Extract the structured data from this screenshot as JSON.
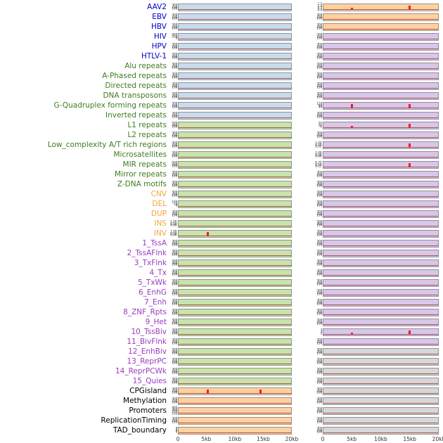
{
  "figure": {
    "description": "Genomic feature density tracks around two integration loci, 0-20kb windows",
    "x_axis_ticks": [
      "0",
      "5kb",
      "10kb",
      "15kb",
      "20kb"
    ]
  },
  "groups": {
    "virus": "#0000cd",
    "repeat": "#3f7d1e",
    "sv": "#f3a63a",
    "chromhmm": "#9a3bbf",
    "other": "#000000"
  },
  "panel_fills": {
    "blue": "#c9dcec",
    "green": "#c9e3ae",
    "orange": "#fdd1a2",
    "purple": "#d8c7e9",
    "gray": "#d7d7d7"
  },
  "plot": {
    "spike_color": "#ed1c24",
    "baseline_color": "#a04434",
    "default_yticks": [
      "300",
      "200",
      "100"
    ]
  },
  "chart_data": {
    "type": "line",
    "layout": "small-multiples: 44 annotation tracks x 2 locus columns",
    "x_ticks": [
      "0",
      "5kb",
      "10kb",
      "15kb",
      "20kb"
    ],
    "x_range_bp": [
      0,
      20000
    ],
    "baseline": "flat near zero in all panels",
    "notable_peaks": [
      {
        "track": "AAV2",
        "column": 2,
        "x": "5kb",
        "relative_height": 0.45
      },
      {
        "track": "AAV2",
        "column": 2,
        "x": "15kb",
        "relative_height": 0.95
      },
      {
        "track": "G-Quadruplex forming repeats",
        "column": 2,
        "x": "5kb",
        "relative_height": 0.95
      },
      {
        "track": "G-Quadruplex forming repeats",
        "column": 2,
        "x": "15kb",
        "relative_height": 0.9
      },
      {
        "track": "L1 repeats",
        "column": 2,
        "x": "5kb",
        "relative_height": 0.5
      },
      {
        "track": "L1 repeats",
        "column": 2,
        "x": "15kb",
        "relative_height": 0.95
      },
      {
        "track": "Low_complexity A/T rich regions",
        "column": 2,
        "x": "15kb",
        "relative_height": 0.95
      },
      {
        "track": "MIR repeats",
        "column": 2,
        "x": "15kb",
        "relative_height": 0.95
      },
      {
        "track": "10_TssBiv",
        "column": 2,
        "x": "5kb",
        "relative_height": 0.5
      },
      {
        "track": "10_TssBiv",
        "column": 2,
        "x": "15kb",
        "relative_height": 0.95
      },
      {
        "track": "INV",
        "column": 1,
        "x": "5kb",
        "relative_height": 0.95
      },
      {
        "track": "CPGisland",
        "column": 1,
        "x": "5kb",
        "relative_height": 0.95
      },
      {
        "track": "CPGisland",
        "column": 1,
        "x": "15kb",
        "relative_height": 0.95
      }
    ]
  },
  "rows": [
    {
      "label": "AAV2",
      "group": "virus",
      "left": {
        "fill": "blue"
      },
      "right": {
        "fill": "orange",
        "yticks": [
          "1.5",
          "1.0",
          "0.5",
          "0.0"
        ],
        "spikes": [
          {
            "x": 0.25,
            "h": 0.45
          },
          {
            "x": 0.75,
            "h": 0.95
          }
        ]
      }
    },
    {
      "label": "EBV",
      "group": "virus",
      "left": {
        "fill": "blue"
      },
      "right": {
        "fill": "orange"
      }
    },
    {
      "label": "HBV",
      "group": "virus",
      "left": {
        "fill": "blue"
      },
      "right": {
        "fill": "orange"
      }
    },
    {
      "label": "HIV",
      "group": "virus",
      "left": {
        "fill": "blue",
        "yticks": [
          "400",
          "200",
          "0"
        ]
      },
      "right": {
        "fill": "purple"
      }
    },
    {
      "label": "HPV",
      "group": "virus",
      "left": {
        "fill": "blue"
      },
      "right": {
        "fill": "purple"
      }
    },
    {
      "label": "HTLV-1",
      "group": "virus",
      "left": {
        "fill": "blue",
        "yticks": [
          "500",
          "300",
          "100"
        ]
      },
      "right": {
        "fill": "purple"
      }
    },
    {
      "label": "Alu repeats",
      "group": "repeat",
      "left": {
        "fill": "blue"
      },
      "right": {
        "fill": "purple"
      }
    },
    {
      "label": "A-Phased repeats",
      "group": "repeat",
      "left": {
        "fill": "blue"
      },
      "right": {
        "fill": "purple"
      }
    },
    {
      "label": "Directed repeats",
      "group": "repeat",
      "left": {
        "fill": "blue"
      },
      "right": {
        "fill": "purple"
      }
    },
    {
      "label": "DNA transposons",
      "group": "repeat",
      "left": {
        "fill": "blue"
      },
      "right": {
        "fill": "purple"
      }
    },
    {
      "label": "G-Quadruplex forming repeats",
      "group": "repeat",
      "left": {
        "fill": "blue",
        "yticks": [
          "300",
          "200",
          "100"
        ]
      },
      "right": {
        "fill": "purple",
        "yticks": [
          "120",
          "80",
          "40"
        ],
        "spikes": [
          {
            "x": 0.25,
            "h": 0.95
          },
          {
            "x": 0.75,
            "h": 0.9
          }
        ]
      }
    },
    {
      "label": "Inverted repeats",
      "group": "repeat",
      "left": {
        "fill": "blue"
      },
      "right": {
        "fill": "purple"
      }
    },
    {
      "label": "L1 repeats",
      "group": "repeat",
      "left": {
        "fill": "green",
        "yticks": [
          "500",
          "300",
          "100"
        ]
      },
      "right": {
        "fill": "purple",
        "yticks": [
          "20",
          "10",
          "0"
        ],
        "spikes": [
          {
            "x": 0.25,
            "h": 0.5
          },
          {
            "x": 0.75,
            "h": 0.95
          }
        ]
      }
    },
    {
      "label": "L2 repeats",
      "group": "repeat",
      "left": {
        "fill": "green"
      },
      "right": {
        "fill": "purple"
      }
    },
    {
      "label": "Low_complexity A/T rich regions",
      "group": "repeat",
      "left": {
        "fill": "green"
      },
      "right": {
        "fill": "purple",
        "yticks": [
          "1.00",
          "0.50",
          "0.25"
        ],
        "spikes": [
          {
            "x": 0.75,
            "h": 0.95
          }
        ]
      }
    },
    {
      "label": "Microsatellites",
      "group": "repeat",
      "left": {
        "fill": "green"
      },
      "right": {
        "fill": "purple",
        "yticks": [
          "1.00",
          "0.50",
          "0.00"
        ]
      }
    },
    {
      "label": "MIR repeats",
      "group": "repeat",
      "left": {
        "fill": "green",
        "yticks": [
          "500",
          "300",
          "100"
        ]
      },
      "right": {
        "fill": "purple",
        "yticks": [
          "0.75",
          "0.50",
          "0.25"
        ],
        "spikes": [
          {
            "x": 0.75,
            "h": 0.95
          }
        ]
      }
    },
    {
      "label": "Mirror repeats",
      "group": "repeat",
      "left": {
        "fill": "green"
      },
      "right": {
        "fill": "purple"
      }
    },
    {
      "label": "Z-DNA motifs",
      "group": "repeat",
      "left": {
        "fill": "green",
        "yticks": [
          "300",
          "200",
          "100"
        ]
      },
      "right": {
        "fill": "purple"
      }
    },
    {
      "label": "CNV",
      "group": "sv",
      "left": {
        "fill": "green"
      },
      "right": {
        "fill": "purple"
      }
    },
    {
      "label": "DEL",
      "group": "sv",
      "left": {
        "fill": "green",
        "yticks": [
          "100",
          "50",
          "0"
        ]
      },
      "right": {
        "fill": "purple"
      }
    },
    {
      "label": "DUP",
      "group": "sv",
      "left": {
        "fill": "green"
      },
      "right": {
        "fill": "purple"
      }
    },
    {
      "label": "INS",
      "group": "sv",
      "left": {
        "fill": "green",
        "yticks": [
          "1.00",
          "0.50",
          "0.00"
        ]
      },
      "right": {
        "fill": "purple",
        "yticks": [
          "500",
          "300",
          "100"
        ]
      }
    },
    {
      "label": "INV",
      "group": "sv",
      "left": {
        "fill": "green",
        "yticks": [
          "1.00",
          "0.50",
          "0.00"
        ],
        "spikes": [
          {
            "x": 0.26,
            "h": 0.95
          }
        ]
      },
      "right": {
        "fill": "purple"
      }
    },
    {
      "label": "1_TssA",
      "group": "chromhmm",
      "left": {
        "fill": "green"
      },
      "right": {
        "fill": "purple"
      }
    },
    {
      "label": "2_TssAFlnk",
      "group": "chromhmm",
      "left": {
        "fill": "green"
      },
      "right": {
        "fill": "purple"
      }
    },
    {
      "label": "3_TxFlnk",
      "group": "chromhmm",
      "left": {
        "fill": "green",
        "yticks": [
          "500",
          "300",
          "100"
        ]
      },
      "right": {
        "fill": "purple"
      }
    },
    {
      "label": "4_Tx",
      "group": "chromhmm",
      "left": {
        "fill": "green"
      },
      "right": {
        "fill": "purple"
      }
    },
    {
      "label": "5_TxWk",
      "group": "chromhmm",
      "left": {
        "fill": "green"
      },
      "right": {
        "fill": "purple"
      }
    },
    {
      "label": "6_EnhG",
      "group": "chromhmm",
      "left": {
        "fill": "green"
      },
      "right": {
        "fill": "purple"
      }
    },
    {
      "label": "7_Enh",
      "group": "chromhmm",
      "left": {
        "fill": "green"
      },
      "right": {
        "fill": "purple"
      }
    },
    {
      "label": "8_ZNF_Rpts",
      "group": "chromhmm",
      "left": {
        "fill": "green"
      },
      "right": {
        "fill": "purple"
      }
    },
    {
      "label": "9_Het",
      "group": "chromhmm",
      "left": {
        "fill": "green",
        "yticks": [
          "300",
          "200",
          "100"
        ]
      },
      "right": {
        "fill": "purple"
      }
    },
    {
      "label": "10_TssBiv",
      "group": "chromhmm",
      "left": {
        "fill": "green"
      },
      "right": {
        "fill": "purple",
        "yticks": [
          "3",
          "2",
          "1"
        ],
        "spikes": [
          {
            "x": 0.25,
            "h": 0.5
          },
          {
            "x": 0.75,
            "h": 0.95
          }
        ]
      }
    },
    {
      "label": "11_BivFlnk",
      "group": "chromhmm",
      "left": {
        "fill": "green"
      },
      "right": {
        "fill": "purple"
      }
    },
    {
      "label": "12_EnhBiv",
      "group": "chromhmm",
      "left": {
        "fill": "green",
        "yticks": [
          "500",
          "300",
          "100"
        ]
      },
      "right": {
        "fill": "gray"
      }
    },
    {
      "label": "13_ReprPC",
      "group": "chromhmm",
      "left": {
        "fill": "green"
      },
      "right": {
        "fill": "gray"
      }
    },
    {
      "label": "14_ReprPCWk",
      "group": "chromhmm",
      "left": {
        "fill": "green"
      },
      "right": {
        "fill": "gray"
      }
    },
    {
      "label": "15_Quies",
      "group": "chromhmm",
      "left": {
        "fill": "green"
      },
      "right": {
        "fill": "gray"
      }
    },
    {
      "label": "CPGisland",
      "group": "other",
      "left": {
        "fill": "orange",
        "yticks": [
          "300",
          "200",
          "100"
        ],
        "spikes": [
          {
            "x": 0.26,
            "h": 0.95
          },
          {
            "x": 0.73,
            "h": 0.95
          }
        ]
      },
      "right": {
        "fill": "gray"
      }
    },
    {
      "label": "Methylation",
      "group": "other",
      "left": {
        "fill": "orange"
      },
      "right": {
        "fill": "gray"
      }
    },
    {
      "label": "Promoters",
      "group": "other",
      "left": {
        "fill": "orange",
        "yticks": [
          "400",
          "300",
          "200",
          "100"
        ]
      },
      "right": {
        "fill": "gray"
      }
    },
    {
      "label": "ReplicationTiming",
      "group": "other",
      "left": {
        "fill": "orange"
      },
      "right": {
        "fill": "gray"
      }
    },
    {
      "label": "TAD_boundary",
      "group": "other",
      "left": {
        "fill": "orange",
        "yticks": [
          "8",
          "4",
          "0"
        ]
      },
      "right": {
        "fill": "gray"
      }
    }
  ]
}
